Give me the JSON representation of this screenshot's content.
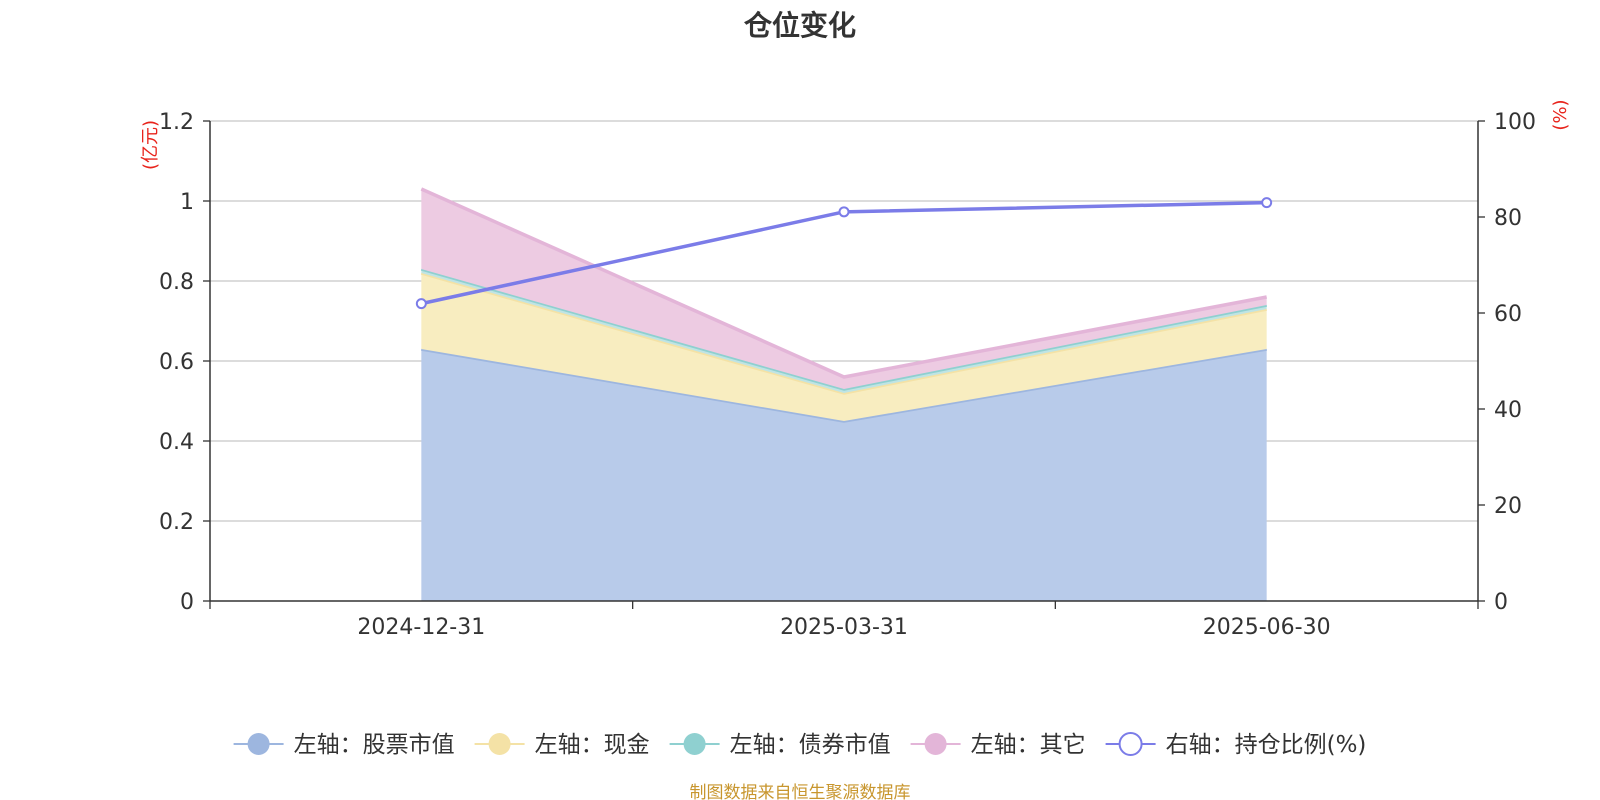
{
  "chart_data": {
    "type": "area",
    "title": "仓位变化",
    "categories": [
      "2024-12-31",
      "2025-03-31",
      "2025-06-30"
    ],
    "left_axis": {
      "unit": "(亿元)",
      "ylim": [
        0,
        1.2
      ],
      "ticks": [
        "0",
        "0.2",
        "0.4",
        "0.6",
        "0.8",
        "1",
        "1.2"
      ],
      "unit_color": "#e8241c"
    },
    "right_axis": {
      "unit": "(%)",
      "ylim": [
        0,
        100
      ],
      "ticks": [
        "0",
        "20",
        "40",
        "60",
        "80",
        "100"
      ],
      "unit_color": "#e8241c"
    },
    "stacked_series": [
      {
        "name": "左轴：股票市值",
        "values": [
          0.63,
          0.45,
          0.63
        ],
        "line_color": "#9db6df",
        "fill_color": "#b8cbea"
      },
      {
        "name": "左轴：现金",
        "values": [
          0.19,
          0.07,
          0.1
        ],
        "line_color": "#f4e2a6",
        "fill_color": "#f8edc0"
      },
      {
        "name": "左轴：债券市值",
        "values": [
          0.01,
          0.01,
          0.01
        ],
        "line_color": "#8fd0d0",
        "fill_color": "#bfe4e4"
      },
      {
        "name": "左轴：其它",
        "values": [
          0.2,
          0.03,
          0.02
        ],
        "line_color": "#e3b5d8",
        "fill_color": "#edcbe2"
      }
    ],
    "line_series": [
      {
        "name": "右轴：持仓比例(%)",
        "values": [
          61.95,
          81.08,
          82.99
        ],
        "color": "#7b7ce8"
      }
    ],
    "grid": true,
    "legend_position": "bottom"
  },
  "footer": "制图数据来自恒生聚源数据库"
}
